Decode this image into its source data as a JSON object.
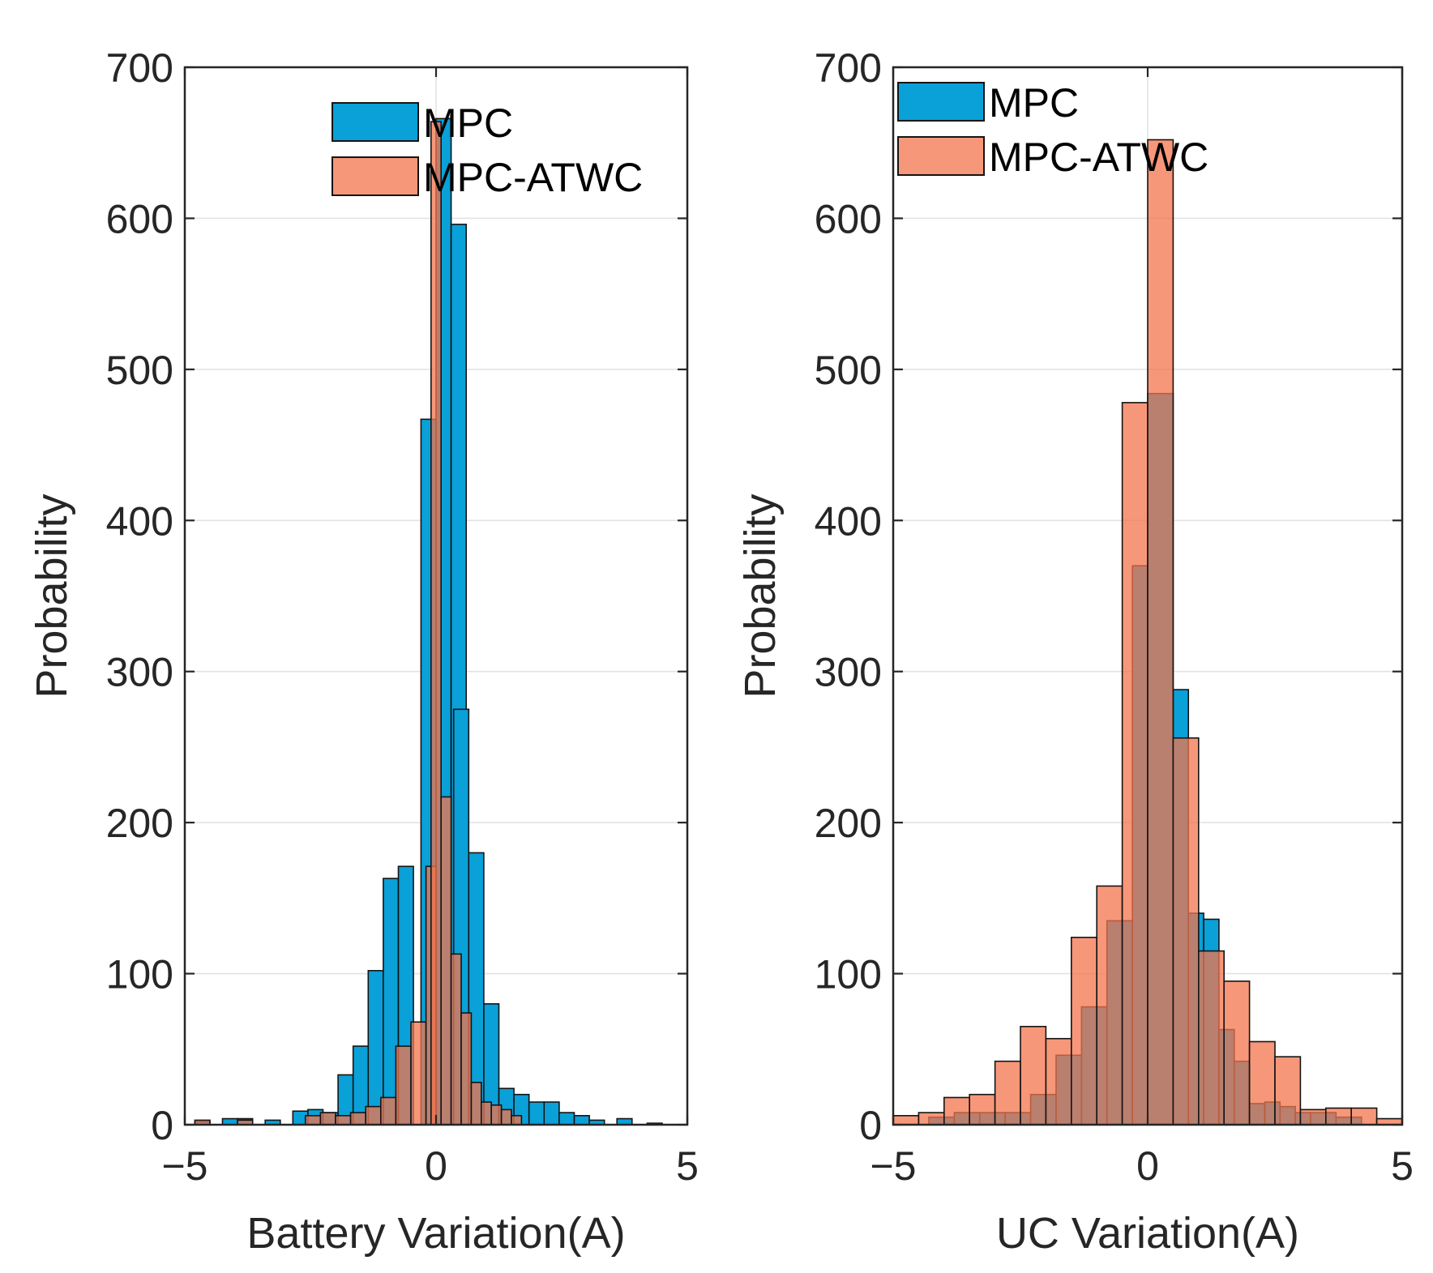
{
  "colors": {
    "mpc": "#0aa0d8",
    "mpc_atwc": "#f4744c",
    "axis": "#262626",
    "grid": "#e3e3e3",
    "bar_edge": "#141414"
  },
  "chart_data": [
    {
      "type": "bar",
      "subtype": "histogram",
      "xlabel": "Battery Variation(A)",
      "ylabel": "Probability",
      "xlim": [
        -5,
        5
      ],
      "ylim": [
        0,
        700
      ],
      "xticks": [
        -5,
        0,
        5
      ],
      "xtick_labels": [
        "−5",
        "0",
        "5"
      ],
      "yticks": [
        0,
        100,
        200,
        300,
        400,
        500,
        600,
        700
      ],
      "ytick_labels": [
        "0",
        "100",
        "200",
        "300",
        "400",
        "500",
        "600",
        "700"
      ],
      "grid": true,
      "legend_position": "top-center",
      "series": [
        {
          "name": "MPC",
          "color_key": "mpc",
          "bins": [
            [
              -4.8,
              -4.5,
              2
            ],
            [
              -4.25,
              -3.95,
              4
            ],
            [
              -3.95,
              -3.65,
              4
            ],
            [
              -3.4,
              -3.1,
              3
            ],
            [
              -2.85,
              -2.55,
              9
            ],
            [
              -2.55,
              -2.25,
              10
            ],
            [
              -2.25,
              -1.95,
              8
            ],
            [
              -1.95,
              -1.65,
              33
            ],
            [
              -1.65,
              -1.35,
              52
            ],
            [
              -1.35,
              -1.05,
              102
            ],
            [
              -1.05,
              -0.75,
              163
            ],
            [
              -0.75,
              -0.45,
              171
            ],
            [
              -0.3,
              0.0,
              467
            ],
            [
              0.0,
              0.3,
              666
            ],
            [
              0.3,
              0.6,
              596
            ],
            [
              0.35,
              0.65,
              275
            ],
            [
              0.65,
              0.95,
              180
            ],
            [
              0.95,
              1.25,
              80
            ],
            [
              1.25,
              1.55,
              24
            ],
            [
              1.55,
              1.85,
              20
            ],
            [
              1.85,
              2.15,
              15
            ],
            [
              2.15,
              2.45,
              15
            ],
            [
              2.45,
              2.75,
              8
            ],
            [
              2.75,
              3.05,
              6
            ],
            [
              3.05,
              3.35,
              3
            ],
            [
              3.6,
              3.9,
              4
            ],
            [
              4.2,
              4.5,
              1
            ]
          ]
        },
        {
          "name": "MPC-ATWC",
          "color_key": "mpc_atwc",
          "bins": [
            [
              -4.8,
              -4.5,
              3
            ],
            [
              -3.95,
              -3.65,
              3
            ],
            [
              -2.6,
              -2.3,
              6
            ],
            [
              -2.3,
              -2.0,
              8
            ],
            [
              -2.0,
              -1.7,
              6
            ],
            [
              -1.7,
              -1.4,
              8
            ],
            [
              -1.4,
              -1.1,
              12
            ],
            [
              -1.1,
              -0.8,
              18
            ],
            [
              -0.8,
              -0.5,
              52
            ],
            [
              -0.5,
              -0.2,
              68
            ],
            [
              -0.2,
              0.0,
              171
            ],
            [
              -0.1,
              0.1,
              664
            ],
            [
              0.1,
              0.3,
              217
            ],
            [
              0.3,
              0.5,
              113
            ],
            [
              0.5,
              0.7,
              74
            ],
            [
              0.7,
              0.9,
              28
            ],
            [
              0.9,
              1.1,
              15
            ],
            [
              1.1,
              1.3,
              13
            ],
            [
              1.3,
              1.5,
              10
            ],
            [
              1.5,
              1.7,
              6
            ]
          ]
        }
      ]
    },
    {
      "type": "bar",
      "subtype": "histogram",
      "xlabel": "UC Variation(A)",
      "ylabel": "Probability",
      "xlim": [
        -5,
        5
      ],
      "ylim": [
        0,
        700
      ],
      "xticks": [
        -5,
        0,
        5
      ],
      "xtick_labels": [
        "−5",
        "0",
        "5"
      ],
      "yticks": [
        0,
        100,
        200,
        300,
        400,
        500,
        600,
        700
      ],
      "ytick_labels": [
        "0",
        "100",
        "200",
        "300",
        "400",
        "500",
        "600",
        "700"
      ],
      "grid": true,
      "legend_position": "top-left",
      "series": [
        {
          "name": "MPC",
          "color_key": "mpc",
          "bins": [
            [
              -4.3,
              -3.8,
              5
            ],
            [
              -3.8,
              -3.3,
              8
            ],
            [
              -3.3,
              -2.8,
              8
            ],
            [
              -2.8,
              -2.3,
              8
            ],
            [
              -2.3,
              -1.8,
              20
            ],
            [
              -1.8,
              -1.3,
              46
            ],
            [
              -1.3,
              -0.8,
              78
            ],
            [
              -0.8,
              -0.3,
              135
            ],
            [
              -0.3,
              0.0,
              370
            ],
            [
              0.0,
              0.5,
              484
            ],
            [
              0.5,
              0.8,
              288
            ],
            [
              0.8,
              1.1,
              140
            ],
            [
              1.1,
              1.4,
              136
            ],
            [
              1.4,
              1.7,
              63
            ],
            [
              1.7,
              2.0,
              42
            ],
            [
              2.0,
              2.3,
              14
            ],
            [
              2.3,
              2.6,
              15
            ],
            [
              2.6,
              2.9,
              12
            ],
            [
              2.9,
              3.2,
              8
            ],
            [
              3.2,
              3.7,
              8
            ],
            [
              3.7,
              4.2,
              5
            ]
          ]
        },
        {
          "name": "MPC-ATWC",
          "color_key": "mpc_atwc",
          "bins": [
            [
              -5.0,
              -4.5,
              6
            ],
            [
              -4.5,
              -4.0,
              8
            ],
            [
              -4.0,
              -3.5,
              18
            ],
            [
              -3.5,
              -3.0,
              20
            ],
            [
              -3.0,
              -2.5,
              42
            ],
            [
              -2.5,
              -2.0,
              65
            ],
            [
              -2.0,
              -1.5,
              57
            ],
            [
              -1.5,
              -1.0,
              124
            ],
            [
              -1.0,
              -0.5,
              158
            ],
            [
              -0.5,
              0.0,
              478
            ],
            [
              0.0,
              0.5,
              652
            ],
            [
              0.5,
              1.0,
              256
            ],
            [
              1.0,
              1.5,
              115
            ],
            [
              1.5,
              2.0,
              95
            ],
            [
              2.0,
              2.5,
              55
            ],
            [
              2.5,
              3.0,
              45
            ],
            [
              3.0,
              3.5,
              10
            ],
            [
              3.5,
              4.0,
              11
            ],
            [
              4.0,
              4.5,
              11
            ],
            [
              4.5,
              5.0,
              4
            ]
          ]
        }
      ]
    }
  ]
}
